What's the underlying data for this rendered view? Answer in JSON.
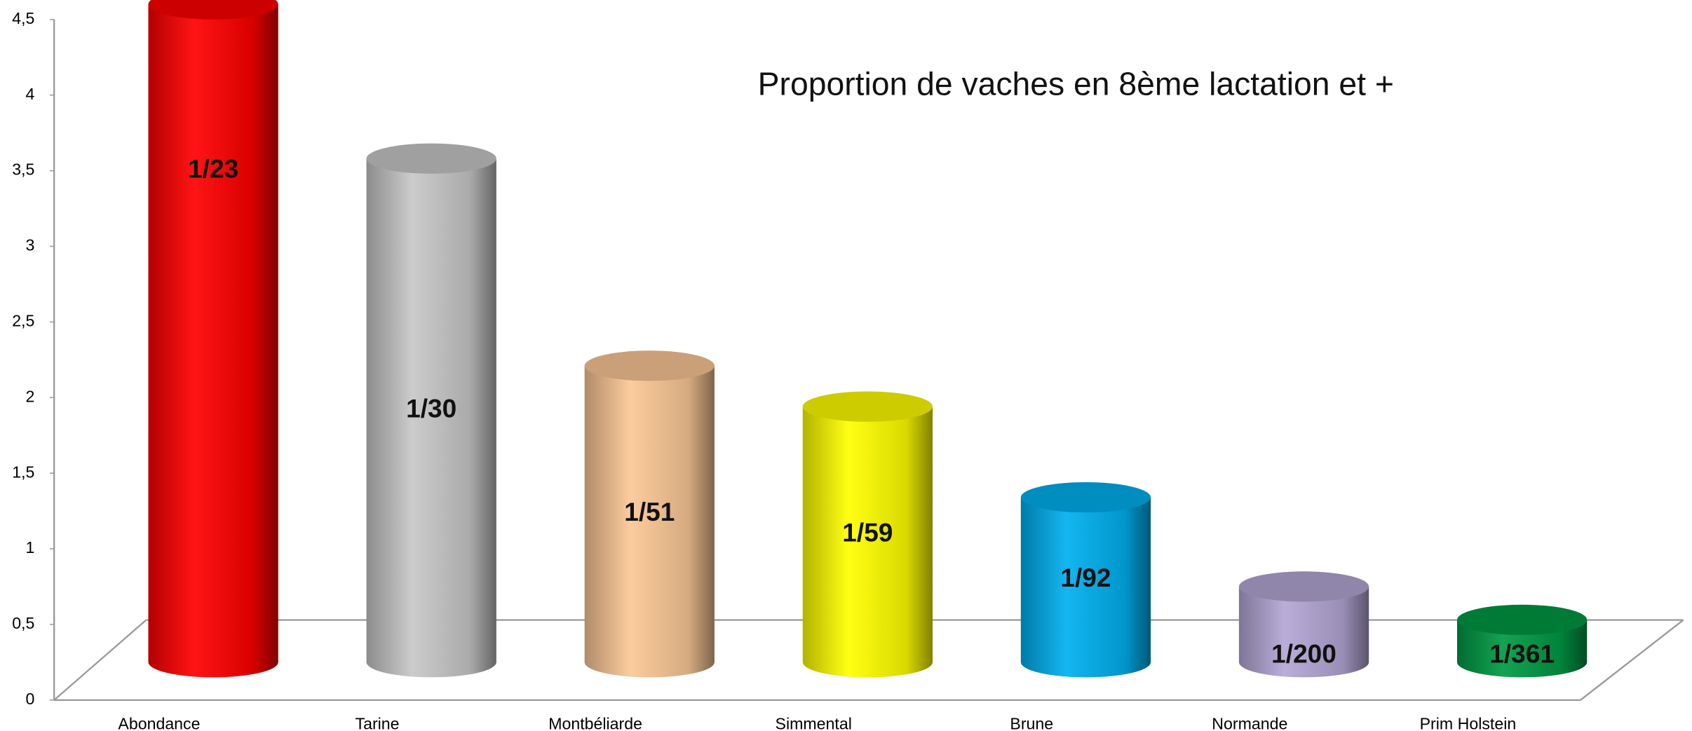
{
  "chart_data": {
    "type": "cylinder",
    "title": "Proportion de vaches  en 8ème lactation et +",
    "categories": [
      "Abondance",
      "Tarine",
      "Montbéliarde",
      "Simmental",
      "Brune",
      "Normande",
      "Prim Holstein"
    ],
    "values": [
      4.35,
      3.33,
      1.96,
      1.69,
      1.09,
      0.5,
      0.28
    ],
    "value_labels": [
      "1/23",
      "1/30",
      "1/51",
      "1/59",
      "1/92",
      "1/200",
      "1/361"
    ],
    "colors": [
      "#ff0000",
      "#c8c8c8",
      "#fcc896",
      "#ffff00",
      "#00b0f0",
      "#b4a7d6",
      "#009a44"
    ],
    "ylim": [
      0,
      4.5
    ],
    "yticks": [
      0,
      {
        "value": 0.5,
        "label": "0,5"
      },
      1,
      {
        "value": 1.5,
        "label": "1,5"
      },
      2,
      {
        "value": 2.5,
        "label": "2,5"
      },
      3,
      {
        "value": 3.5,
        "label": "3,5"
      },
      4,
      {
        "value": 4.5,
        "label": "4,5"
      }
    ],
    "grid": false
  }
}
